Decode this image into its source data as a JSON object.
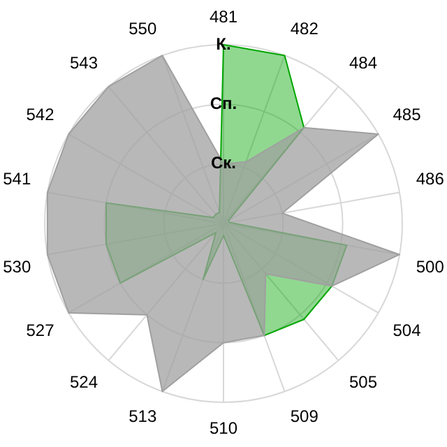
{
  "chart_data": {
    "type": "radar",
    "categories": [
      "481",
      "482",
      "484",
      "485",
      "486",
      "500",
      "504",
      "505",
      "509",
      "510",
      "513",
      "524",
      "527",
      "530",
      "541",
      "542",
      "543",
      "550"
    ],
    "series": [
      {
        "color": "#a0a0a0",
        "values": [
          1.0,
          1.1,
          2.1,
          3,
          1.0,
          3,
          2.1,
          1.1,
          2.0,
          2.0,
          3,
          2.0,
          3,
          3,
          3,
          3,
          3,
          3
        ]
      },
      {
        "color": "#02a602",
        "values": [
          3,
          3,
          2.1,
          0.1,
          0.1,
          2.1,
          2.1,
          2.1,
          2.0,
          0.2,
          1.0,
          0.2,
          2.0,
          2.0,
          2.0,
          0.2,
          0.2,
          0.2
        ]
      }
    ],
    "ylim": [
      0,
      3
    ],
    "yticks": [
      {
        "value": 1,
        "label": "Ск."
      },
      {
        "value": 2,
        "label": "Сп."
      },
      {
        "value": 3,
        "label": "К."
      }
    ],
    "grid": true,
    "legend": false
  }
}
